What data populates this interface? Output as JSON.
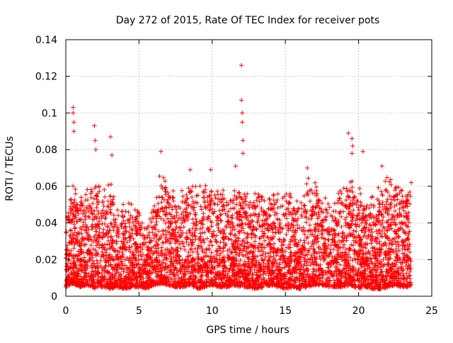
{
  "chart_data": {
    "type": "scatter",
    "title": "Day 272 of 2015, Rate Of TEC Index for receiver pots",
    "xlabel": "GPS time / hours",
    "ylabel": "ROTI / TECUs",
    "xlim": [
      0,
      25
    ],
    "ylim": [
      0,
      0.14
    ],
    "xticks": [
      0,
      5,
      10,
      15,
      20,
      25
    ],
    "xtick_labels": [
      "0",
      "5",
      "10",
      "15",
      "20",
      "25"
    ],
    "yticks": [
      0,
      0.02,
      0.04,
      0.06,
      0.08,
      0.1,
      0.12,
      0.14
    ],
    "ytick_labels": [
      "0",
      "0.02",
      "0.04",
      "0.06",
      "0.08",
      "0.1",
      "0.12",
      "0.14"
    ],
    "grid": true,
    "legend": "none",
    "series": [
      {
        "name": "ROTI",
        "marker": "+",
        "color": "#ff0000",
        "x_range": [
          0,
          23.6
        ],
        "points": [
          [
            0.5,
            0.103
          ],
          [
            0.5,
            0.1
          ],
          [
            0.55,
            0.095
          ],
          [
            0.55,
            0.09
          ],
          [
            1.95,
            0.093
          ],
          [
            2.0,
            0.085
          ],
          [
            2.05,
            0.08
          ],
          [
            3.05,
            0.087
          ],
          [
            3.15,
            0.077
          ],
          [
            6.5,
            0.079
          ],
          [
            8.5,
            0.069
          ],
          [
            9.9,
            0.069
          ],
          [
            11.6,
            0.071
          ],
          [
            12.0,
            0.126
          ],
          [
            12.0,
            0.107
          ],
          [
            12.05,
            0.1
          ],
          [
            12.05,
            0.095
          ],
          [
            12.1,
            0.085
          ],
          [
            12.1,
            0.078
          ],
          [
            16.5,
            0.07
          ],
          [
            19.3,
            0.089
          ],
          [
            19.55,
            0.086
          ],
          [
            19.6,
            0.082
          ],
          [
            19.55,
            0.078
          ],
          [
            20.3,
            0.079
          ],
          [
            21.6,
            0.071
          ],
          [
            23.6,
            0.062
          ]
        ],
        "envelope": {
          "hours": [
            0,
            0.5,
            1,
            1.5,
            2,
            2.5,
            3,
            3.5,
            4,
            4.5,
            5,
            5.5,
            6,
            6.5,
            7,
            7.5,
            8,
            8.5,
            9,
            9.5,
            10,
            10.5,
            11,
            11.5,
            12,
            12.5,
            13,
            13.5,
            14,
            14.5,
            15,
            15.5,
            16,
            16.5,
            17,
            17.5,
            18,
            18.5,
            19,
            19.5,
            20,
            20.5,
            21,
            21.5,
            22,
            22.5,
            23,
            23.6
          ],
          "upper": [
            0.045,
            0.062,
            0.055,
            0.062,
            0.065,
            0.06,
            0.066,
            0.05,
            0.052,
            0.056,
            0.048,
            0.04,
            0.052,
            0.073,
            0.066,
            0.055,
            0.06,
            0.067,
            0.064,
            0.062,
            0.066,
            0.062,
            0.063,
            0.06,
            0.066,
            0.06,
            0.061,
            0.058,
            0.061,
            0.059,
            0.062,
            0.06,
            0.055,
            0.066,
            0.065,
            0.057,
            0.059,
            0.056,
            0.062,
            0.068,
            0.061,
            0.056,
            0.058,
            0.066,
            0.07,
            0.068,
            0.062,
            0.062
          ],
          "lower": [
            0.005,
            0.007,
            0.005,
            0.006,
            0.004,
            0.005,
            0.004,
            0.005,
            0.004,
            0.005,
            0.005,
            0.004,
            0.006,
            0.007,
            0.006,
            0.005,
            0.005,
            0.006,
            0.004,
            0.005,
            0.006,
            0.005,
            0.005,
            0.006,
            0.005,
            0.005,
            0.004,
            0.005,
            0.006,
            0.005,
            0.004,
            0.005,
            0.004,
            0.005,
            0.006,
            0.006,
            0.005,
            0.005,
            0.005,
            0.006,
            0.004,
            0.005,
            0.004,
            0.004,
            0.005,
            0.006,
            0.005,
            0.005
          ]
        }
      }
    ]
  }
}
